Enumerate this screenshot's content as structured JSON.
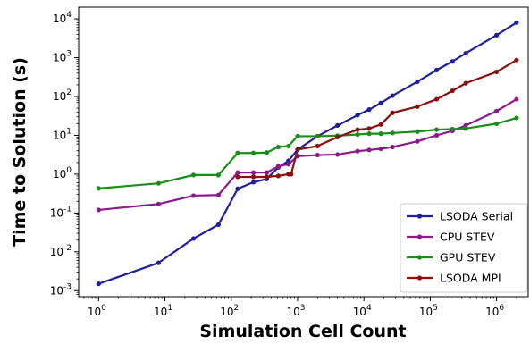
{
  "chart_data": {
    "type": "line",
    "title": "",
    "xlabel": "Simulation Cell Count",
    "ylabel": "Time to Solution (s)",
    "xscale": "log",
    "yscale": "log",
    "xlim": [
      0.5,
      3000000
    ],
    "ylim": [
      0.0007,
      20000
    ],
    "grid": false,
    "legend_position": "lower-right",
    "x_ticks": [
      {
        "value": 1,
        "base": "10",
        "exp": "0"
      },
      {
        "value": 10,
        "base": "10",
        "exp": "1"
      },
      {
        "value": 100,
        "base": "10",
        "exp": "2"
      },
      {
        "value": 1000,
        "base": "10",
        "exp": "3"
      },
      {
        "value": 10000,
        "base": "10",
        "exp": "4"
      },
      {
        "value": 100000,
        "base": "10",
        "exp": "5"
      },
      {
        "value": 1000000,
        "base": "10",
        "exp": "6"
      }
    ],
    "y_ticks": [
      {
        "value": 0.001,
        "base": "10",
        "exp": "-3"
      },
      {
        "value": 0.01,
        "base": "10",
        "exp": "-2"
      },
      {
        "value": 0.1,
        "base": "10",
        "exp": "-1"
      },
      {
        "value": 1,
        "base": "10",
        "exp": "0"
      },
      {
        "value": 10,
        "base": "10",
        "exp": "1"
      },
      {
        "value": 100,
        "base": "10",
        "exp": "2"
      },
      {
        "value": 1000,
        "base": "10",
        "exp": "3"
      },
      {
        "value": 10000,
        "base": "10",
        "exp": "4"
      }
    ],
    "series": [
      {
        "name": "LSODA Serial",
        "color": "#1f1f9a",
        "points": [
          [
            1,
            0.0015
          ],
          [
            8,
            0.0052
          ],
          [
            27,
            0.022
          ],
          [
            64,
            0.05
          ],
          [
            125,
            0.42
          ],
          [
            216,
            0.62
          ],
          [
            343,
            0.75
          ],
          [
            512,
            1.5
          ],
          [
            729,
            2.2
          ],
          [
            1000,
            4.3
          ],
          [
            2000,
            9.5
          ],
          [
            4000,
            18
          ],
          [
            8000,
            33
          ],
          [
            12000,
            46
          ],
          [
            18000,
            68
          ],
          [
            27000,
            105
          ],
          [
            64000,
            240
          ],
          [
            125000,
            480
          ],
          [
            216000,
            800
          ],
          [
            343000,
            1300
          ],
          [
            1000000,
            3800
          ],
          [
            2000000,
            8000
          ]
        ]
      },
      {
        "name": "CPU STEV",
        "color": "#8b1a8b",
        "points": [
          [
            1,
            0.12
          ],
          [
            8,
            0.17
          ],
          [
            27,
            0.28
          ],
          [
            64,
            0.29
          ],
          [
            125,
            1.1
          ],
          [
            216,
            1.1
          ],
          [
            343,
            1.1
          ],
          [
            512,
            1.6
          ],
          [
            729,
            1.8
          ],
          [
            1000,
            2.9
          ],
          [
            2000,
            3.1
          ],
          [
            4000,
            3.2
          ],
          [
            8000,
            3.9
          ],
          [
            12000,
            4.2
          ],
          [
            18000,
            4.5
          ],
          [
            27000,
            5.0
          ],
          [
            64000,
            7.0
          ],
          [
            125000,
            10
          ],
          [
            216000,
            13
          ],
          [
            343000,
            18
          ],
          [
            1000000,
            42
          ],
          [
            2000000,
            85
          ]
        ]
      },
      {
        "name": "GPU STEV",
        "color": "#1a8c1a",
        "points": [
          [
            1,
            0.43
          ],
          [
            8,
            0.58
          ],
          [
            27,
            0.95
          ],
          [
            64,
            0.95
          ],
          [
            125,
            3.5
          ],
          [
            216,
            3.5
          ],
          [
            343,
            3.6
          ],
          [
            512,
            5.0
          ],
          [
            729,
            5.3
          ],
          [
            1000,
            9.5
          ],
          [
            2000,
            9.5
          ],
          [
            4000,
            9.8
          ],
          [
            8000,
            10.5
          ],
          [
            12000,
            11
          ],
          [
            18000,
            11
          ],
          [
            27000,
            11.5
          ],
          [
            64000,
            12.5
          ],
          [
            125000,
            14
          ],
          [
            216000,
            14.5
          ],
          [
            343000,
            15
          ],
          [
            1000000,
            20
          ],
          [
            2000000,
            28
          ]
        ]
      },
      {
        "name": "LSODA MPI",
        "color": "#8b1010",
        "points": [
          [
            125,
            0.85
          ],
          [
            216,
            0.85
          ],
          [
            343,
            0.85
          ],
          [
            512,
            0.9
          ],
          [
            729,
            1.0
          ],
          [
            800,
            1.0
          ],
          [
            1000,
            4.3
          ],
          [
            2000,
            5.3
          ],
          [
            4000,
            9
          ],
          [
            8000,
            14
          ],
          [
            12000,
            15
          ],
          [
            18000,
            19
          ],
          [
            27000,
            38
          ],
          [
            64000,
            55
          ],
          [
            125000,
            85
          ],
          [
            216000,
            140
          ],
          [
            343000,
            220
          ],
          [
            1000000,
            430
          ],
          [
            2000000,
            870
          ]
        ]
      }
    ]
  }
}
